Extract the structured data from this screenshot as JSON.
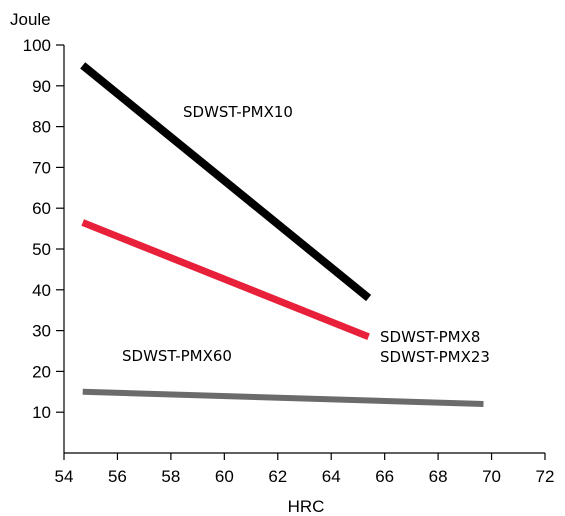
{
  "chart_data": {
    "type": "line",
    "ylabel": "Joule",
    "xlabel": "HRC",
    "xlim": [
      54,
      72
    ],
    "ylim": [
      0,
      100
    ],
    "x_ticks": [
      54,
      56,
      58,
      60,
      62,
      64,
      66,
      68,
      70,
      72
    ],
    "y_ticks": [
      10,
      20,
      30,
      40,
      50,
      60,
      70,
      80,
      90,
      100
    ],
    "grid": false,
    "series": [
      {
        "name": "SDWST-PMX10",
        "color": "#000000",
        "x": [
          54.7,
          65.4
        ],
        "y": [
          95,
          38
        ]
      },
      {
        "name": "SDWST-PMX8",
        "name2": "SDWST-PMX23",
        "color": "#e8203a",
        "x": [
          54.7,
          65.4
        ],
        "y": [
          56.5,
          28.5
        ]
      },
      {
        "name": "SDWST-PMX60",
        "color": "#6b6b6b",
        "x": [
          54.7,
          69.7
        ],
        "y": [
          15,
          12
        ]
      }
    ]
  }
}
